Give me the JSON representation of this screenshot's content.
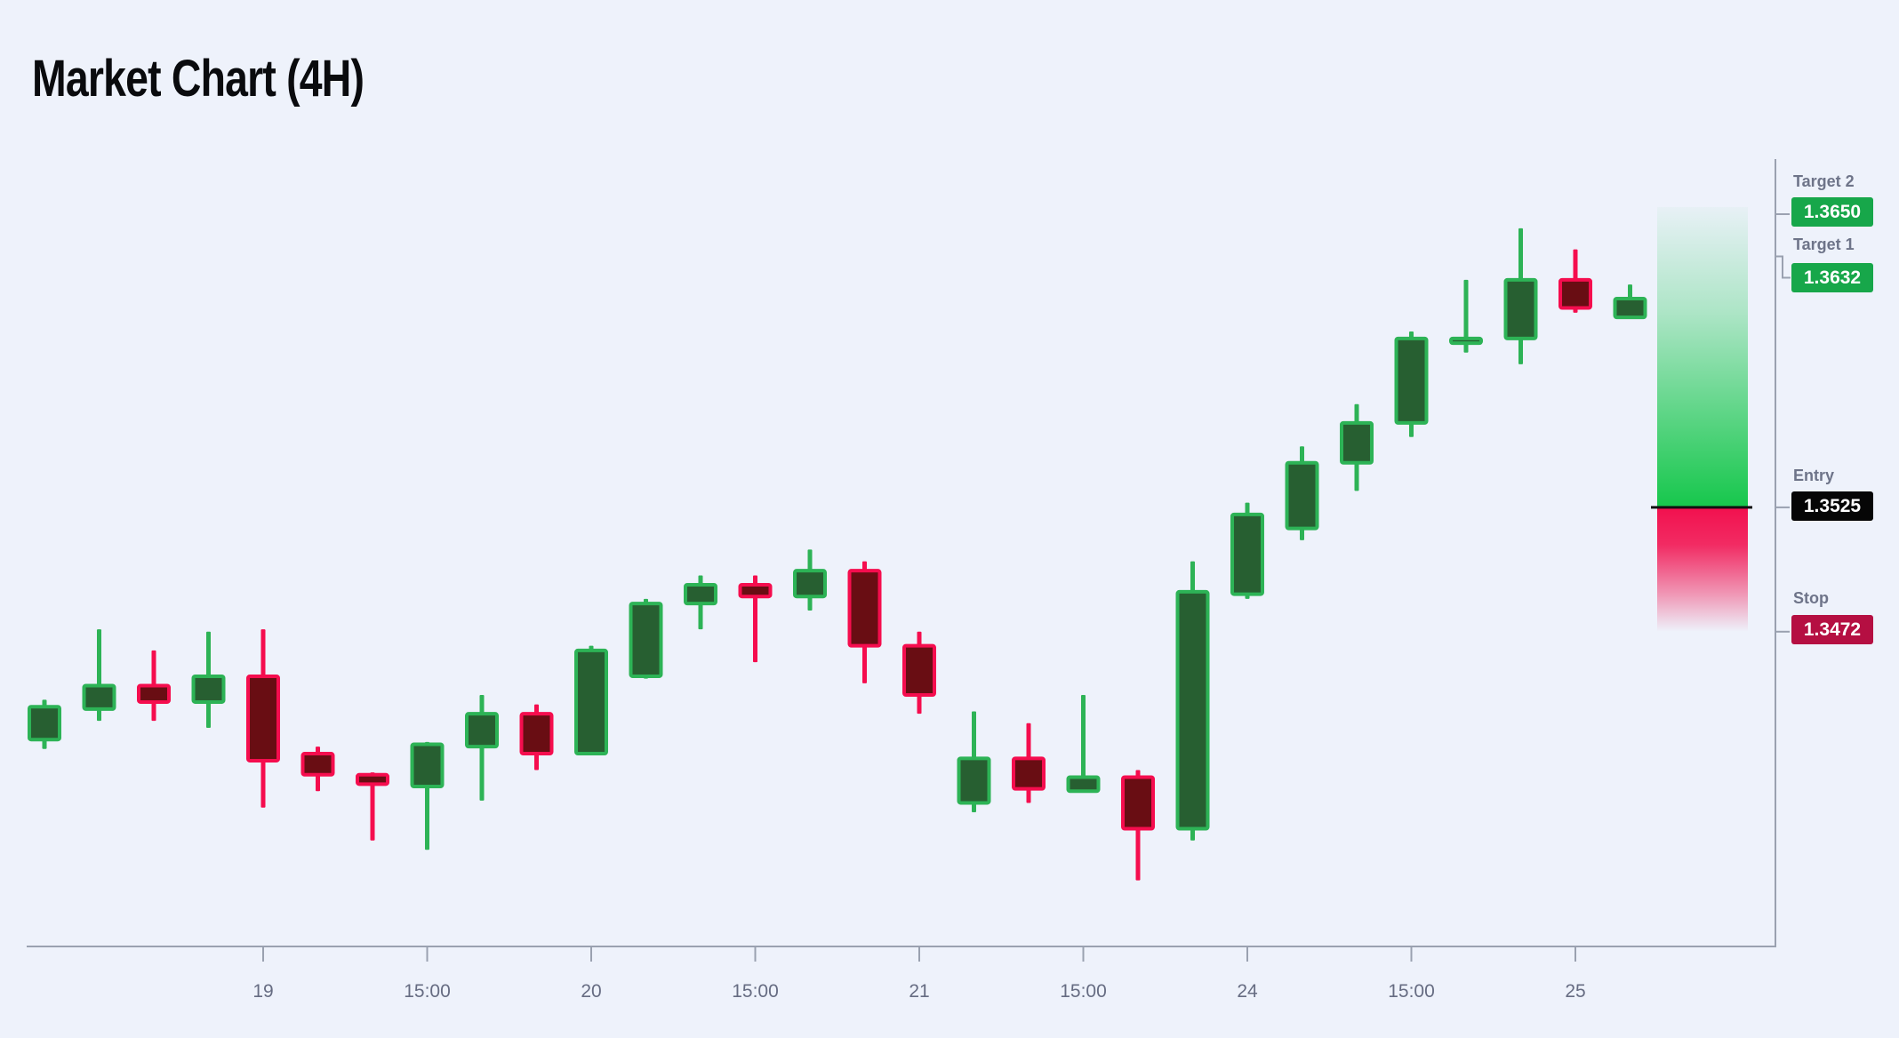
{
  "title": "Market Chart (4H)",
  "colors": {
    "background": "#eef2fb",
    "title": "#0a0b0e",
    "bull_border": "#2db356",
    "bull_fill": "#275f31",
    "bear_border": "#f50d4e",
    "bear_fill": "#690d13",
    "zone_green": "#16c74c",
    "zone_red": "#f2104e",
    "entry_line": "#111111",
    "axis": "#9aa1b0",
    "tick_label": "#666c82",
    "level_label": "#6e7489",
    "badge_green": "#17a74a",
    "badge_black": "#060606",
    "badge_red": "#b50f42"
  },
  "levels": [
    {
      "id": "target2",
      "label": "Target 2",
      "value": "1.3650",
      "price": 1.365,
      "badge": "green"
    },
    {
      "id": "target1",
      "label": "Target 1",
      "value": "1.3632",
      "price": 1.3632,
      "badge": "green"
    },
    {
      "id": "entry",
      "label": "Entry",
      "value": "1.3525",
      "price": 1.3525,
      "badge": "black"
    },
    {
      "id": "stop",
      "label": "Stop",
      "value": "1.3472",
      "price": 1.3472,
      "badge": "red"
    }
  ],
  "chart_data": {
    "type": "candlestick",
    "title": "Market Chart (4H)",
    "timeframe": "4H",
    "grid": false,
    "legend": false,
    "ylim": [
      1.3345,
      1.3675
    ],
    "x_ticks": [
      {
        "index": 4,
        "label": "19"
      },
      {
        "index": 7,
        "label": "15:00"
      },
      {
        "index": 10,
        "label": "20"
      },
      {
        "index": 13,
        "label": "15:00"
      },
      {
        "index": 16,
        "label": "21"
      },
      {
        "index": 19,
        "label": "15:00"
      },
      {
        "index": 22,
        "label": "24"
      },
      {
        "index": 25,
        "label": "15:00"
      },
      {
        "index": 28,
        "label": "25"
      }
    ],
    "candles": [
      {
        "o": 1.3426,
        "h": 1.3443,
        "l": 1.3422,
        "c": 1.344
      },
      {
        "o": 1.3439,
        "h": 1.3473,
        "l": 1.3434,
        "c": 1.3449
      },
      {
        "o": 1.3449,
        "h": 1.3464,
        "l": 1.3434,
        "c": 1.3442
      },
      {
        "o": 1.3442,
        "h": 1.3472,
        "l": 1.3431,
        "c": 1.3453
      },
      {
        "o": 1.3453,
        "h": 1.3473,
        "l": 1.3397,
        "c": 1.3417
      },
      {
        "o": 1.342,
        "h": 1.3423,
        "l": 1.3404,
        "c": 1.3411
      },
      {
        "o": 1.3411,
        "h": 1.3412,
        "l": 1.3383,
        "c": 1.3407
      },
      {
        "o": 1.3406,
        "h": 1.3425,
        "l": 1.3379,
        "c": 1.3424
      },
      {
        "o": 1.3423,
        "h": 1.3445,
        "l": 1.34,
        "c": 1.3437
      },
      {
        "o": 1.3437,
        "h": 1.3441,
        "l": 1.3413,
        "c": 1.342
      },
      {
        "o": 1.342,
        "h": 1.3466,
        "l": 1.342,
        "c": 1.3464
      },
      {
        "o": 1.3453,
        "h": 1.3486,
        "l": 1.3452,
        "c": 1.3484
      },
      {
        "o": 1.3484,
        "h": 1.3496,
        "l": 1.3473,
        "c": 1.3492
      },
      {
        "o": 1.3492,
        "h": 1.3496,
        "l": 1.3459,
        "c": 1.3487
      },
      {
        "o": 1.3487,
        "h": 1.3507,
        "l": 1.3481,
        "c": 1.3498
      },
      {
        "o": 1.3498,
        "h": 1.3502,
        "l": 1.345,
        "c": 1.3466
      },
      {
        "o": 1.3466,
        "h": 1.3472,
        "l": 1.3437,
        "c": 1.3445
      },
      {
        "o": 1.3399,
        "h": 1.3438,
        "l": 1.3395,
        "c": 1.3418
      },
      {
        "o": 1.3418,
        "h": 1.3433,
        "l": 1.3399,
        "c": 1.3405
      },
      {
        "o": 1.3404,
        "h": 1.3445,
        "l": 1.3404,
        "c": 1.341
      },
      {
        "o": 1.341,
        "h": 1.3413,
        "l": 1.3366,
        "c": 1.3388
      },
      {
        "o": 1.3388,
        "h": 1.3502,
        "l": 1.3383,
        "c": 1.3489
      },
      {
        "o": 1.3488,
        "h": 1.3527,
        "l": 1.3486,
        "c": 1.3522
      },
      {
        "o": 1.3516,
        "h": 1.3551,
        "l": 1.3511,
        "c": 1.3544
      },
      {
        "o": 1.3544,
        "h": 1.3569,
        "l": 1.3532,
        "c": 1.3561
      },
      {
        "o": 1.3561,
        "h": 1.36,
        "l": 1.3555,
        "c": 1.3597
      },
      {
        "o": 1.3595,
        "h": 1.3622,
        "l": 1.3591,
        "c": 1.3597
      },
      {
        "o": 1.3597,
        "h": 1.3644,
        "l": 1.3586,
        "c": 1.3622
      },
      {
        "o": 1.3622,
        "h": 1.3635,
        "l": 1.3608,
        "c": 1.361
      },
      {
        "o": 1.3606,
        "h": 1.362,
        "l": 1.3606,
        "c": 1.3614
      }
    ]
  }
}
